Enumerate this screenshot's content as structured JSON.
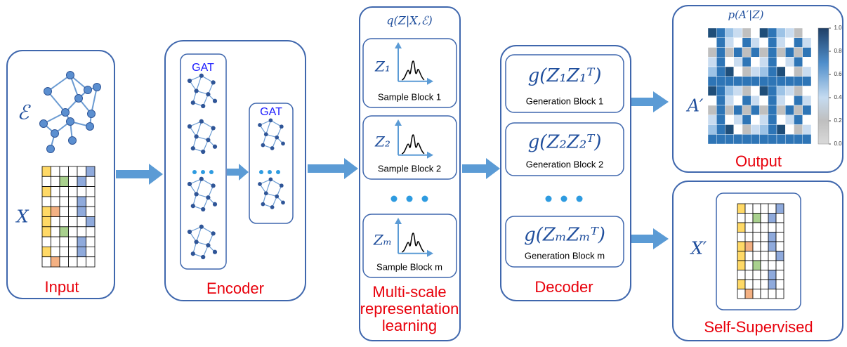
{
  "input": {
    "label": "Input",
    "graph_symbol": "ℰ",
    "feature_symbol": "X"
  },
  "encoder": {
    "label": "Encoder",
    "layers": [
      "GAT",
      "GAT"
    ]
  },
  "multiscale": {
    "title": "q(Z|X,ℰ)",
    "blocks": [
      {
        "symbol": "Z₁",
        "label": "Sample Block 1"
      },
      {
        "symbol": "Z₂",
        "label": "Sample Block 2"
      },
      {
        "symbol": "Zₘ",
        "label": "Sample Block m"
      }
    ],
    "label": [
      "Multi-scale",
      "representation",
      "learning"
    ]
  },
  "decoder": {
    "label": "Decoder",
    "blocks": [
      {
        "formula": "g(Z₁Z₁ᵀ)",
        "label": "Generation Block 1"
      },
      {
        "formula": "g(Z₂Z₂ᵀ)",
        "label": "Generation Block 2"
      },
      {
        "formula": "g(ZₘZₘᵀ)",
        "label": "Generation Block m"
      }
    ]
  },
  "output": {
    "title": "p(A′|Z)",
    "symbol": "A′",
    "label": "Output",
    "colorbar_ticks": [
      {
        "value": 1,
        "label": "1.0"
      },
      {
        "value": 0.8,
        "label": "0.8"
      },
      {
        "value": 0.6,
        "label": "0.6"
      },
      {
        "value": 0.4,
        "label": "0.4"
      },
      {
        "value": 0.2,
        "label": "0.2"
      },
      {
        "value": 0,
        "label": "0.0"
      }
    ]
  },
  "self_supervised": {
    "symbol": "X′",
    "label": "Self-Supervised"
  }
}
